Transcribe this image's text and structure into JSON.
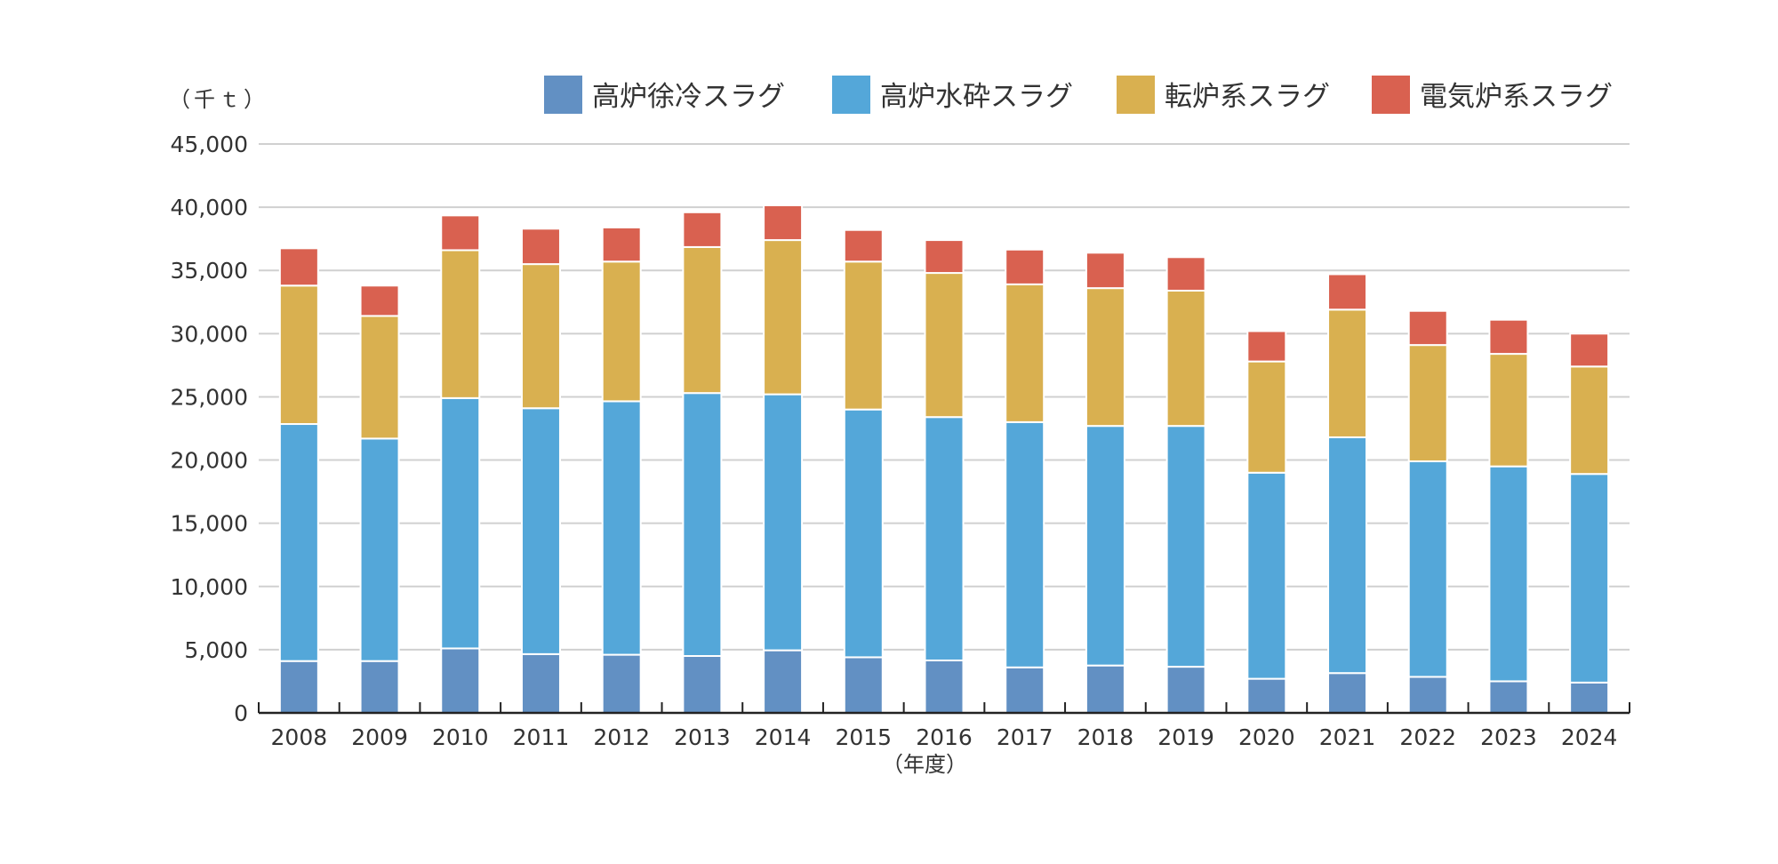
{
  "chart_data": {
    "type": "bar",
    "stacked": true,
    "unit_label": "（千ｔ）",
    "xlabel": "（年度）",
    "ylabel": "",
    "ylim": [
      0,
      45000
    ],
    "yticks": [
      0,
      5000,
      10000,
      15000,
      20000,
      25000,
      30000,
      35000,
      40000,
      45000
    ],
    "ytick_labels": [
      "0",
      "5,000",
      "10,000",
      "15,000",
      "20,000",
      "25,000",
      "30,000",
      "35,000",
      "40,000",
      "45,000"
    ],
    "grid": true,
    "legend_position": "top-right",
    "categories": [
      "2008",
      "2009",
      "2010",
      "2011",
      "2012",
      "2013",
      "2014",
      "2015",
      "2016",
      "2017",
      "2018",
      "2019",
      "2020",
      "2021",
      "2022",
      "2023",
      "2024"
    ],
    "series": [
      {
        "name": "高炉徐冷スラグ",
        "color": "#6290c3",
        "values": [
          4100,
          4100,
          5100,
          4650,
          4600,
          4500,
          4950,
          4400,
          4150,
          3600,
          3750,
          3650,
          2700,
          3150,
          2850,
          2500,
          2400
        ]
      },
      {
        "name": "高炉水砕スラグ",
        "color": "#54a7d9",
        "values": [
          18750,
          17600,
          19800,
          19450,
          20050,
          20800,
          20250,
          19600,
          19250,
          19400,
          18950,
          19050,
          16300,
          18650,
          17050,
          17000,
          16500
        ]
      },
      {
        "name": "転炉系スラグ",
        "color": "#d9b050",
        "values": [
          10950,
          9700,
          11700,
          11400,
          11050,
          11550,
          12200,
          11700,
          11400,
          10900,
          10900,
          10700,
          8800,
          10100,
          9200,
          8900,
          8500
        ]
      },
      {
        "name": "電気炉系スラグ",
        "color": "#d96150",
        "values": [
          2950,
          2400,
          2750,
          2800,
          2700,
          2750,
          2750,
          2500,
          2600,
          2750,
          2800,
          2650,
          2400,
          2800,
          2700,
          2700,
          2600
        ]
      }
    ]
  }
}
